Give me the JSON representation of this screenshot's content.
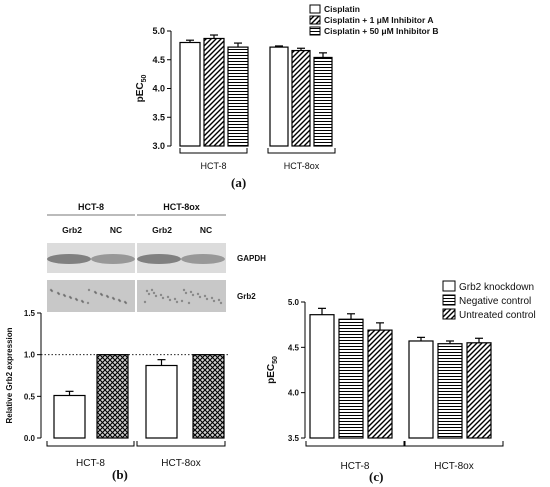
{
  "panel_labels": {
    "a": "(a)",
    "b": "(b)",
    "c": "(c)"
  },
  "colors": {
    "bar_stroke": "#000000",
    "bar_fill": "#ffffff",
    "blot_light": "#d9d9d9",
    "blot_band": "#7d7d7d"
  },
  "blots": {
    "groups": [
      "HCT-8",
      "HCT-8ox"
    ],
    "lanes": [
      "Grb2",
      "NC",
      "Grb2",
      "NC"
    ],
    "rows": [
      "GAPDH",
      "Grb2"
    ]
  },
  "chart_data": [
    {
      "id": "a",
      "type": "bar",
      "ylabel": "pEC",
      "ylabel_sub": "50",
      "ylim": [
        3.0,
        5.0
      ],
      "yticks": [
        "3.0",
        "3.5",
        "4.0",
        "4.5",
        "5.0"
      ],
      "categories": [
        "HCT-8",
        "HCT-8ox"
      ],
      "legend": {
        "position": "top-right",
        "entries": [
          "Cisplatin",
          "Cisplatin + 1 μM Inhibitor A",
          "Cisplatin + 50 μM Inhibitor B"
        ]
      },
      "series": [
        {
          "name": "Cisplatin",
          "pattern": "none",
          "values": [
            4.8,
            4.72
          ],
          "errors": [
            0.04,
            0.02
          ]
        },
        {
          "name": "Cisplatin + 1 μM Inhibitor A",
          "pattern": "diagonal",
          "values": [
            4.87,
            4.66
          ],
          "errors": [
            0.06,
            0.04
          ]
        },
        {
          "name": "Cisplatin + 50 μM Inhibitor B",
          "pattern": "horizontal",
          "values": [
            4.72,
            4.54
          ],
          "errors": [
            0.07,
            0.08
          ]
        }
      ]
    },
    {
      "id": "b",
      "type": "bar",
      "ylabel": "Relative Grb2 expression",
      "ylim": [
        0.0,
        1.5
      ],
      "yticks": [
        "0.0",
        "0.5",
        "1.0",
        "1.5"
      ],
      "reference_line": 1.0,
      "categories": [
        "HCT-8",
        "HCT-8ox"
      ],
      "series": [
        {
          "name": "Grb2",
          "pattern": "none",
          "values": [
            0.51,
            0.87
          ],
          "errors": [
            0.05,
            0.07
          ]
        },
        {
          "name": "NC",
          "pattern": "crosshatch",
          "values": [
            1.0,
            1.0
          ],
          "errors": [
            0,
            0
          ]
        }
      ]
    },
    {
      "id": "c",
      "type": "bar",
      "ylabel": "pEC",
      "ylabel_sub": "50",
      "ylim": [
        3.5,
        5.0
      ],
      "yticks": [
        "3.5",
        "4.0",
        "4.5",
        "5.0"
      ],
      "categories": [
        "HCT-8",
        "HCT-8ox"
      ],
      "legend": {
        "position": "top-right",
        "entries": [
          "Grb2 knockdown",
          "Negative control",
          "Untreated control"
        ]
      },
      "series": [
        {
          "name": "Grb2 knockdown",
          "pattern": "none",
          "values": [
            4.86,
            4.57
          ],
          "errors": [
            0.07,
            0.04
          ]
        },
        {
          "name": "Negative control",
          "pattern": "horizontal",
          "values": [
            4.81,
            4.54
          ],
          "errors": [
            0.06,
            0.03
          ]
        },
        {
          "name": "Untreated control",
          "pattern": "diagonal",
          "values": [
            4.69,
            4.55
          ],
          "errors": [
            0.08,
            0.05
          ]
        }
      ]
    }
  ]
}
